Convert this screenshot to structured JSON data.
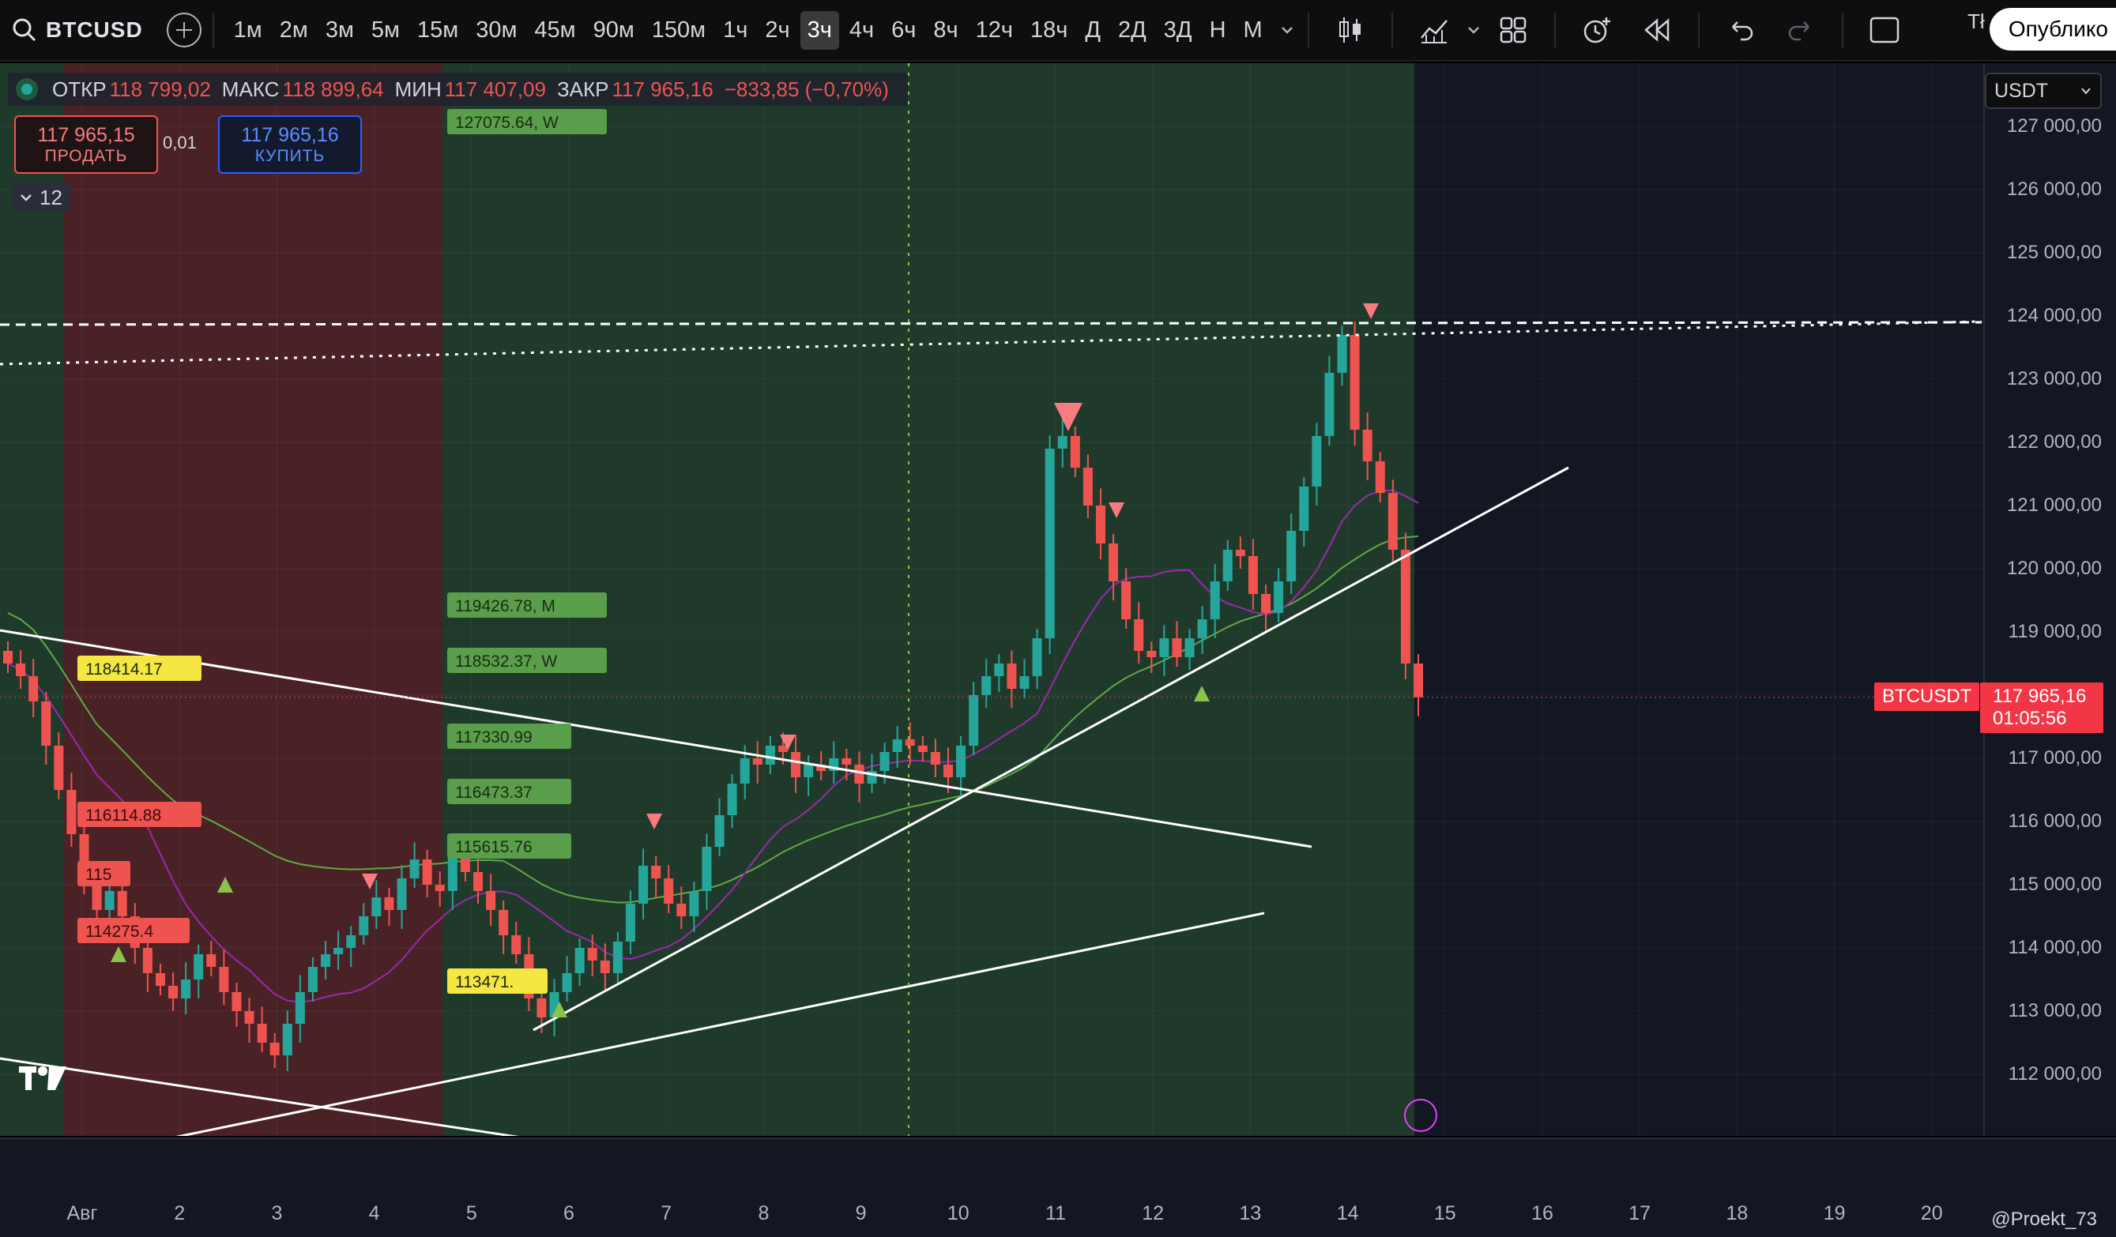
{
  "toolbar": {
    "symbol": "BTCUSD",
    "intervals": [
      "1м",
      "2м",
      "3м",
      "5м",
      "15м",
      "30м",
      "45м",
      "90м",
      "150м",
      "1ч",
      "2ч",
      "3ч",
      "4ч",
      "6ч",
      "8ч",
      "12ч",
      "18ч",
      "Д",
      "2Д",
      "3Д",
      "Н",
      "М"
    ],
    "active_interval": "3ч",
    "publish_label": "Опублико",
    "extra_label": "Tł",
    "icons": [
      "search-icon",
      "add-symbol-icon",
      "chevron-down-icon",
      "bar-style-icon",
      "indicators-icon",
      "chevron-down-icon",
      "layouts-icon",
      "alert-icon",
      "replay-icon",
      "undo-icon",
      "redo-icon",
      "fullscreen-icon"
    ]
  },
  "legend": {
    "open_label": "ОТКР",
    "open": "118 799,02",
    "high_label": "МАКС",
    "high": "118 899,64",
    "low_label": "МИН",
    "low": "117 407,09",
    "close_label": "ЗАКР",
    "close": "117 965,16",
    "change": "−833,85 (−0,70%)"
  },
  "trade": {
    "sell_price": "117 965,15",
    "sell_label": "ПРОДАТЬ",
    "spread": "0,01",
    "buy_price": "117 965,16",
    "buy_label": "КУПИТЬ"
  },
  "collapse_count": "12",
  "currency": "USDT",
  "price_tag": {
    "symbol": "BTCUSDT",
    "price": "117 965,16",
    "countdown": "01:05:56"
  },
  "watermark": "@Proekt_73",
  "colors": {
    "up": "#26a69a",
    "down": "#ef5350",
    "bg": "#131722",
    "green_zone": "#1f3a2a",
    "red_zone": "#4a2226"
  },
  "chart_data": {
    "type": "candlestick",
    "y_ticks": [
      "127 000,00",
      "126 000,00",
      "125 000,00",
      "124 000,00",
      "123 000,00",
      "122 000,00",
      "121 000,00",
      "120 000,00",
      "119 000,00",
      "118 000,00",
      "117 000,00",
      "116 000,00",
      "115 000,00",
      "114 000,00",
      "113 000,00",
      "112 000,00"
    ],
    "ylim": [
      111300,
      127200
    ],
    "x_ticks": [
      "Авг",
      "2",
      "3",
      "4",
      "5",
      "6",
      "7",
      "8",
      "9",
      "10",
      "11",
      "12",
      "13",
      "14",
      "15",
      "16",
      "17",
      "18",
      "19",
      "20"
    ],
    "level_labels": [
      {
        "text": "127075.64, W",
        "price": 127075.64,
        "color": "#5a9e4b"
      },
      {
        "text": "119426.78, M",
        "price": 119426.78,
        "color": "#5a9e4b"
      },
      {
        "text": "118532.37, W",
        "price": 118532.37,
        "color": "#5a9e4b"
      },
      {
        "text": "117330.99",
        "price": 117330.99,
        "color": "#5a9e4b"
      },
      {
        "text": "116473.37",
        "price": 116473.37,
        "color": "#5a9e4b"
      },
      {
        "text": "115615.76",
        "price": 115615.76,
        "color": "#5a9e4b"
      },
      {
        "text": "113471.",
        "price": 113471,
        "color": "#f5e642"
      },
      {
        "text": "118414.17",
        "price": 118414.17,
        "color": "#f5e642"
      },
      {
        "text": "116114.88",
        "price": 116114.88,
        "color": "#ef5350"
      },
      {
        "text": "115",
        "price": 115200,
        "color": "#ef5350"
      },
      {
        "text": "114275.4",
        "price": 114275.4,
        "color": "#ef5350"
      }
    ],
    "closes": [
      118500,
      118300,
      117900,
      117200,
      116500,
      115800,
      115100,
      114600,
      114900,
      114500,
      114000,
      113600,
      113400,
      113200,
      113500,
      113900,
      113700,
      113300,
      113000,
      112800,
      112500,
      112300,
      112800,
      113300,
      113700,
      113900,
      114000,
      114200,
      114500,
      114800,
      114600,
      115100,
      115400,
      115000,
      114900,
      115500,
      115200,
      114900,
      114600,
      114200,
      113900,
      113200,
      112900,
      113300,
      113600,
      114000,
      113800,
      113600,
      114100,
      114700,
      115300,
      115100,
      114700,
      114500,
      114900,
      115600,
      116100,
      116600,
      117000,
      116900,
      117200,
      117100,
      116700,
      116900,
      116800,
      117000,
      116900,
      116600,
      116800,
      117100,
      117300,
      117200,
      117100,
      116900,
      116700,
      117200,
      118000,
      118300,
      118500,
      118100,
      118300,
      118900,
      121900,
      122100,
      121600,
      121000,
      120400,
      119800,
      119200,
      118700,
      118600,
      118900,
      118600,
      118900,
      119200,
      119800,
      120300,
      120200,
      119600,
      119300,
      119800,
      120600,
      121300,
      122100,
      123100,
      123700,
      122200,
      121700,
      121200,
      120300,
      118500,
      117965
    ]
  }
}
